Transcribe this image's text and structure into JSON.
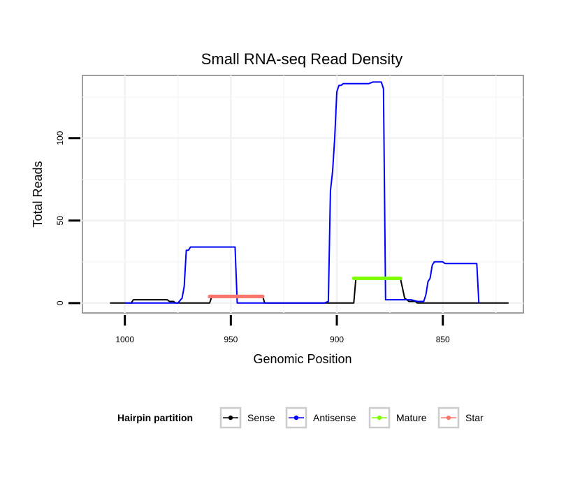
{
  "chart_data": {
    "type": "line",
    "title": "Small RNA-seq Read Density",
    "xlabel": "Genomic Position",
    "ylabel": "Total Reads",
    "x_reversed": true,
    "xlim": [
      1020,
      812
    ],
    "ylim": [
      -6,
      138
    ],
    "x_ticks": [
      1000,
      950,
      900,
      850
    ],
    "x_tick_labels": [
      "1000",
      "950",
      "900",
      "850"
    ],
    "y_ticks": [
      0,
      50,
      100
    ],
    "y_tick_labels": [
      "0",
      "50",
      "100"
    ],
    "grid": true,
    "legend": {
      "title": "Hairpin partition",
      "position": "bottom",
      "entries": [
        {
          "label": "Sense",
          "color": "#000000"
        },
        {
          "label": "Antisense",
          "color": "#0000ff"
        },
        {
          "label": "Mature",
          "color": "#7fff00"
        },
        {
          "label": "Star",
          "color": "#f8766d"
        }
      ]
    },
    "series": [
      {
        "name": "Sense",
        "color": "#000000",
        "points": [
          [
            1007,
            0
          ],
          [
            997,
            0
          ],
          [
            996,
            2
          ],
          [
            990,
            2
          ],
          [
            980,
            2
          ],
          [
            979,
            1
          ],
          [
            977,
            1
          ],
          [
            976,
            0
          ],
          [
            974,
            0
          ],
          [
            960,
            0
          ],
          [
            959,
            4
          ],
          [
            954,
            4
          ],
          [
            940,
            4
          ],
          [
            935,
            4
          ],
          [
            934,
            0
          ],
          [
            910,
            0
          ],
          [
            892,
            0
          ],
          [
            891,
            15
          ],
          [
            880,
            15
          ],
          [
            870,
            15
          ],
          [
            868,
            3
          ],
          [
            866,
            1
          ],
          [
            863,
            1
          ],
          [
            862,
            0
          ],
          [
            850,
            0
          ],
          [
            840,
            0
          ],
          [
            819,
            0
          ]
        ]
      },
      {
        "name": "Antisense",
        "color": "#0000ff",
        "points": [
          [
            1000,
            0
          ],
          [
            978,
            0
          ],
          [
            975,
            0
          ],
          [
            973,
            3
          ],
          [
            972,
            10
          ],
          [
            971,
            32
          ],
          [
            970,
            32
          ],
          [
            969,
            34
          ],
          [
            960,
            34
          ],
          [
            950,
            34
          ],
          [
            948,
            34
          ],
          [
            947,
            0
          ],
          [
            934,
            0
          ],
          [
            920,
            0
          ],
          [
            906,
            0
          ],
          [
            904,
            1
          ],
          [
            903,
            68
          ],
          [
            902,
            80
          ],
          [
            901,
            100
          ],
          [
            900,
            128
          ],
          [
            899,
            132
          ],
          [
            898,
            132
          ],
          [
            897,
            133
          ],
          [
            885,
            133
          ],
          [
            883,
            134
          ],
          [
            879,
            134
          ],
          [
            878,
            130
          ],
          [
            877,
            2
          ],
          [
            870,
            2
          ],
          [
            865,
            2
          ],
          [
            862,
            1
          ],
          [
            859,
            1
          ],
          [
            858,
            5
          ],
          [
            857,
            13
          ],
          [
            856,
            15
          ],
          [
            855,
            23
          ],
          [
            854,
            25
          ],
          [
            850,
            25
          ],
          [
            849,
            24
          ],
          [
            840,
            24
          ],
          [
            834,
            24
          ],
          [
            833,
            0
          ]
        ]
      },
      {
        "name": "Mature",
        "color": "#7fff00",
        "points": [
          [
            892,
            15
          ],
          [
            870,
            15
          ]
        ]
      },
      {
        "name": "Star",
        "color": "#f8766d",
        "points": [
          [
            960,
            4
          ],
          [
            935,
            4
          ]
        ]
      }
    ]
  }
}
